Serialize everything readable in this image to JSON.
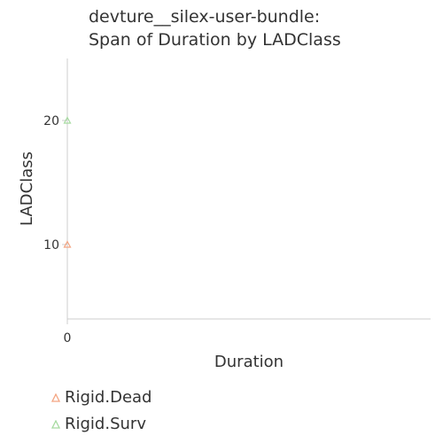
{
  "chart_data": {
    "type": "scatter",
    "title_lines": [
      "devture__silex-user-bundle:",
      "Span of Duration by LADClass"
    ],
    "xlabel": "Duration",
    "ylabel": "LADClass",
    "xlim": [
      0,
      1
    ],
    "ylim": [
      4,
      25
    ],
    "x_ticks": [
      {
        "value": 0,
        "label": "0"
      }
    ],
    "y_ticks": [
      {
        "value": 10,
        "label": "10"
      },
      {
        "value": 20,
        "label": "20"
      }
    ],
    "grid": false,
    "legend_position": "bottom-left",
    "series": [
      {
        "name": "Rigid.Dead",
        "color": "#f4a582",
        "marker": "triangle",
        "points": [
          {
            "x": 0,
            "y": 10
          }
        ]
      },
      {
        "name": "Rigid.Surv",
        "color": "#a6dba0",
        "marker": "triangle",
        "points": [
          {
            "x": 0,
            "y": 20
          }
        ]
      }
    ]
  }
}
